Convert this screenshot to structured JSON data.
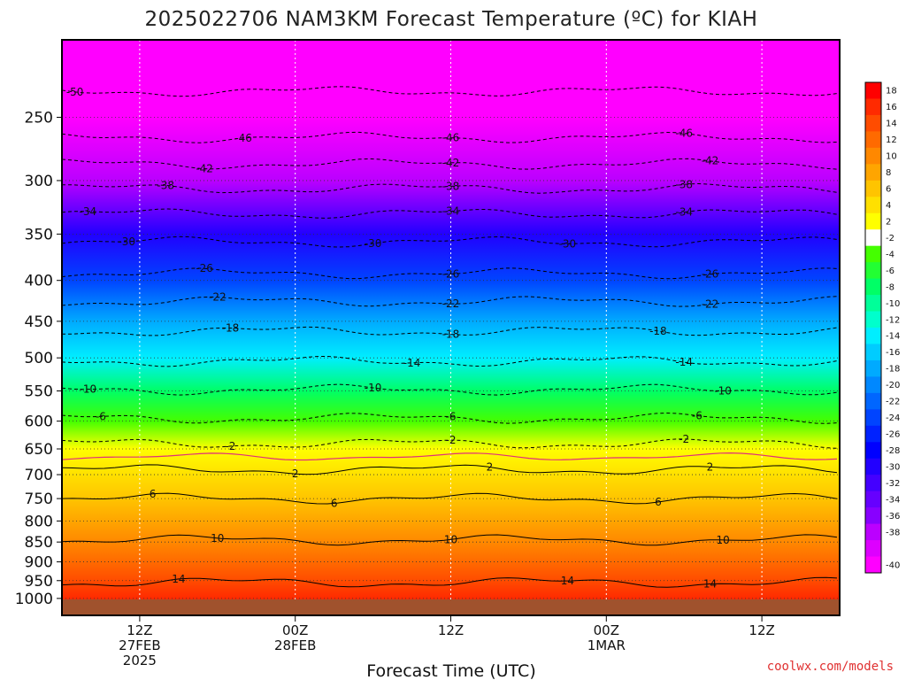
{
  "chart_data": {
    "type": "heatmap",
    "title": "2025022706 NAM3KM Forecast Temperature (ºC) for KIAH",
    "xlabel": "Forecast Time (UTC)",
    "credit": "coolwx.com/models",
    "y_axis": {
      "scale": "log-pressure",
      "range_hPa": [
        1050,
        200
      ],
      "ticks": [
        250,
        300,
        350,
        400,
        450,
        500,
        550,
        600,
        650,
        700,
        750,
        800,
        850,
        900,
        950,
        1000
      ]
    },
    "x_axis": {
      "range": [
        "2025-02-27T06Z",
        "2025-03-01T18Z"
      ],
      "ticks": [
        {
          "time": "2025-02-27T12Z",
          "line1": "12Z",
          "line2": "27FEB",
          "line3": "2025"
        },
        {
          "time": "2025-02-28T00Z",
          "line1": "00Z",
          "line2": "28FEB",
          "line3": ""
        },
        {
          "time": "2025-02-28T12Z",
          "line1": "12Z",
          "line2": "",
          "line3": ""
        },
        {
          "time": "2025-03-01T00Z",
          "line1": "00Z",
          "line2": "1MAR",
          "line3": ""
        },
        {
          "time": "2025-03-01T12Z",
          "line1": "12Z",
          "line2": "",
          "line3": ""
        }
      ]
    },
    "grid": true,
    "colorbar": {
      "placement": "right",
      "bins": [
        {
          "label": "18",
          "color": "#ff0000"
        },
        {
          "label": "16",
          "color": "#ff2a00"
        },
        {
          "label": "14",
          "color": "#ff4c00"
        },
        {
          "label": "12",
          "color": "#ff6a00"
        },
        {
          "label": "10",
          "color": "#ff8800"
        },
        {
          "label": "8",
          "color": "#ffa500"
        },
        {
          "label": "6",
          "color": "#ffc400"
        },
        {
          "label": "4",
          "color": "#ffe000"
        },
        {
          "label": "2",
          "color": "#ffff00"
        },
        {
          "label": "-2",
          "color": "#ffffff"
        },
        {
          "label": "-4",
          "color": "#44ff00"
        },
        {
          "label": "-6",
          "color": "#22ff33"
        },
        {
          "label": "-8",
          "color": "#00ff66"
        },
        {
          "label": "-10",
          "color": "#00ff99"
        },
        {
          "label": "-12",
          "color": "#00ffcc"
        },
        {
          "label": "-14",
          "color": "#00eeff"
        },
        {
          "label": "-16",
          "color": "#00ccff"
        },
        {
          "label": "-18",
          "color": "#00aaff"
        },
        {
          "label": "-20",
          "color": "#0088ff"
        },
        {
          "label": "-22",
          "color": "#0066ff"
        },
        {
          "label": "-24",
          "color": "#0044ff"
        },
        {
          "label": "-26",
          "color": "#0022ff"
        },
        {
          "label": "-28",
          "color": "#0000ff"
        },
        {
          "label": "-30",
          "color": "#2200ff"
        },
        {
          "label": "-32",
          "color": "#4400ff"
        },
        {
          "label": "-34",
          "color": "#6600ff"
        },
        {
          "label": "-36",
          "color": "#8800ff"
        },
        {
          "label": "-38",
          "color": "#bb00ff"
        },
        {
          "label": "",
          "color": "#dd00ff"
        },
        {
          "label": "-40",
          "color": "#ff00ff"
        }
      ]
    },
    "surface_color": "#a0522d",
    "freezing_line_color": "#e0307a",
    "levels_hPa": [
      1000,
      950,
      900,
      850,
      800,
      750,
      700,
      650,
      600,
      550,
      500,
      450,
      400,
      350,
      300,
      250,
      200
    ],
    "temperature_profile_C": [
      15,
      14,
      12,
      10,
      8,
      6,
      3,
      1,
      -4,
      -9,
      -14,
      -19,
      -25,
      -31,
      -38,
      -46,
      -52
    ],
    "contours": [
      {
        "value": 14,
        "level_hPa": 955,
        "labels_at": [
          "2025-02-27T15Z",
          "2025-02-28T21Z",
          "2025-03-01T08Z"
        ]
      },
      {
        "value": 10,
        "level_hPa": 845,
        "labels_at": [
          "2025-02-27T18Z",
          "2025-02-28T12Z",
          "2025-03-01T09Z"
        ]
      },
      {
        "value": 6,
        "level_hPa": 750,
        "labels_at": [
          "2025-02-27T13Z",
          "2025-02-28T03Z",
          "2025-03-01T04Z"
        ]
      },
      {
        "value": 2,
        "level_hPa": 690,
        "labels_at": [
          "2025-02-28T00Z",
          "2025-02-28T15Z",
          "2025-03-01T08Z"
        ]
      },
      {
        "value": -2,
        "level_hPa": 640,
        "labels_at": [
          "2025-02-27T19Z",
          "2025-02-28T12Z",
          "2025-03-01T06Z"
        ]
      },
      {
        "value": -6,
        "level_hPa": 595,
        "labels_at": [
          "2025-02-27T09Z",
          "2025-02-28T12Z",
          "2025-03-01T07Z"
        ]
      },
      {
        "value": -10,
        "level_hPa": 548,
        "labels_at": [
          "2025-02-27T08Z",
          "2025-02-28T06Z",
          "2025-03-01T09Z"
        ]
      },
      {
        "value": -14,
        "level_hPa": 505,
        "labels_at": [
          "2025-02-28T09Z",
          "2025-03-01T06Z"
        ]
      },
      {
        "value": -18,
        "level_hPa": 463,
        "labels_at": [
          "2025-02-27T19Z",
          "2025-02-28T12Z",
          "2025-03-01T04Z"
        ]
      },
      {
        "value": -22,
        "level_hPa": 425,
        "labels_at": [
          "2025-02-27T18Z",
          "2025-02-28T12Z",
          "2025-03-01T08Z"
        ]
      },
      {
        "value": -26,
        "level_hPa": 392,
        "labels_at": [
          "2025-02-27T17Z",
          "2025-02-28T12Z",
          "2025-03-01T08Z"
        ]
      },
      {
        "value": -30,
        "level_hPa": 358,
        "labels_at": [
          "2025-02-27T11Z",
          "2025-02-28T06Z",
          "2025-02-28T21Z"
        ]
      },
      {
        "value": -34,
        "level_hPa": 330,
        "labels_at": [
          "2025-02-27T08Z",
          "2025-02-28T12Z",
          "2025-03-01T06Z"
        ]
      },
      {
        "value": -38,
        "level_hPa": 307,
        "labels_at": [
          "2025-02-27T14Z",
          "2025-02-28T12Z",
          "2025-03-01T06Z"
        ]
      },
      {
        "value": -42,
        "level_hPa": 286,
        "labels_at": [
          "2025-02-27T17Z",
          "2025-02-28T12Z",
          "2025-03-01T08Z"
        ]
      },
      {
        "value": -46,
        "level_hPa": 265,
        "labels_at": [
          "2025-02-27T20Z",
          "2025-02-28T12Z",
          "2025-03-01T06Z"
        ]
      },
      {
        "value": -50,
        "level_hPa": 232,
        "labels_at": [
          "2025-02-27T07Z"
        ]
      }
    ]
  }
}
